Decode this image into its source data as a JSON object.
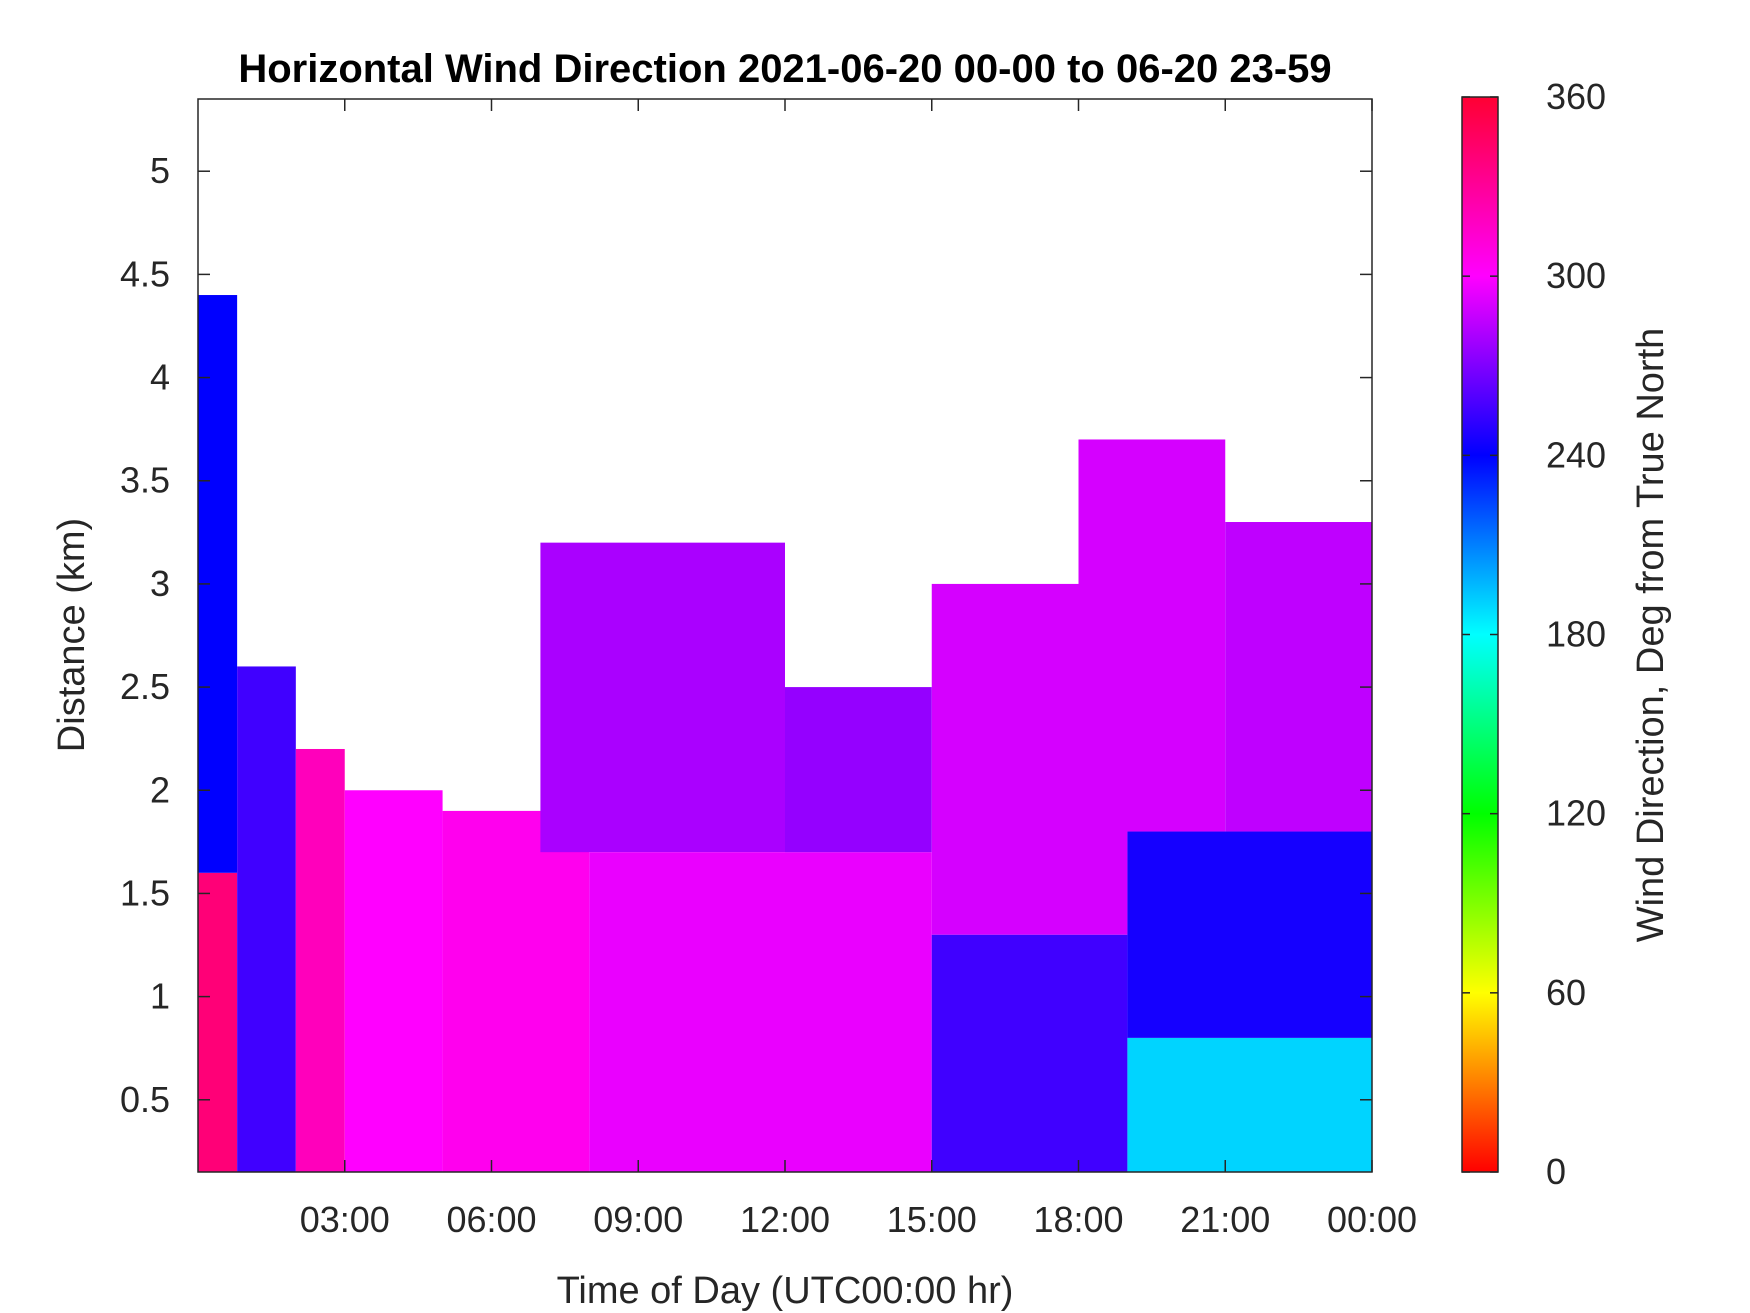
{
  "chart_data": {
    "type": "heatmap",
    "title": "Horizontal Wind Direction 2021-06-20 00-00 to 06-20 23-59",
    "xlabel": "Time of Day (UTC00:00 hr)",
    "ylabel": "Distance (km)",
    "xlim": [
      0,
      24
    ],
    "ylim": [
      0.15,
      5.35
    ],
    "x_ticks": [
      {
        "value": 3,
        "label": "03:00"
      },
      {
        "value": 6,
        "label": "06:00"
      },
      {
        "value": 9,
        "label": "09:00"
      },
      {
        "value": 12,
        "label": "12:00"
      },
      {
        "value": 15,
        "label": "15:00"
      },
      {
        "value": 18,
        "label": "18:00"
      },
      {
        "value": 21,
        "label": "21:00"
      },
      {
        "value": 24,
        "label": "00:00"
      }
    ],
    "y_ticks": [
      {
        "value": 0.5,
        "label": "0.5"
      },
      {
        "value": 1,
        "label": "1"
      },
      {
        "value": 1.5,
        "label": "1.5"
      },
      {
        "value": 2,
        "label": "2"
      },
      {
        "value": 2.5,
        "label": "2.5"
      },
      {
        "value": 3,
        "label": "3"
      },
      {
        "value": 3.5,
        "label": "3.5"
      },
      {
        "value": 4,
        "label": "4"
      },
      {
        "value": 4.5,
        "label": "4.5"
      },
      {
        "value": 5,
        "label": "5"
      }
    ],
    "colorbar": {
      "label": "Wind Direction, Deg from True North",
      "range": [
        0,
        360
      ],
      "ticks": [
        {
          "value": 0,
          "label": "0"
        },
        {
          "value": 60,
          "label": "60"
        },
        {
          "value": 120,
          "label": "120"
        },
        {
          "value": 180,
          "label": "180"
        },
        {
          "value": 240,
          "label": "240"
        },
        {
          "value": 300,
          "label": "300"
        },
        {
          "value": 360,
          "label": "360"
        }
      ],
      "colormap": [
        "#ff0000",
        "#ffff00",
        "#00ff00",
        "#00ffff",
        "#0000ff",
        "#ff00ff",
        "#ff0033"
      ]
    },
    "data_grid": {
      "x_start": 0,
      "x_step": 0.5,
      "y_start": 0.15,
      "y_step": 0.1,
      "regions": [
        {
          "x_range": [
            0,
            0.8
          ],
          "y_range": [
            0.15,
            1.6
          ],
          "value": 340
        },
        {
          "x_range": [
            0,
            0.8
          ],
          "y_range": [
            1.6,
            4.4
          ],
          "value": 240
        },
        {
          "x_range": [
            0.8,
            2.0
          ],
          "y_range": [
            0.15,
            2.6
          ],
          "value": 255
        },
        {
          "x_range": [
            2.0,
            3.0
          ],
          "y_range": [
            0.15,
            2.2
          ],
          "value": 320
        },
        {
          "x_range": [
            3.0,
            5.0
          ],
          "y_range": [
            0.15,
            2.0
          ],
          "value": 300
        },
        {
          "x_range": [
            5.0,
            8.0
          ],
          "y_range": [
            0.15,
            1.9
          ],
          "value": 305
        },
        {
          "x_range": [
            7.0,
            12.0
          ],
          "y_range": [
            1.7,
            3.2
          ],
          "value": 280
        },
        {
          "x_range": [
            8.0,
            15.0
          ],
          "y_range": [
            0.15,
            1.7
          ],
          "value": 295
        },
        {
          "x_range": [
            12.0,
            15.0
          ],
          "y_range": [
            1.7,
            2.5
          ],
          "value": 275
        },
        {
          "x_range": [
            15.0,
            19.0
          ],
          "y_range": [
            0.15,
            1.3
          ],
          "value": 255
        },
        {
          "x_range": [
            15.0,
            19.0
          ],
          "y_range": [
            1.3,
            3.0
          ],
          "value": 290
        },
        {
          "x_range": [
            19.0,
            24.0
          ],
          "y_range": [
            0.15,
            0.8
          ],
          "value": 190
        },
        {
          "x_range": [
            19.0,
            24.0
          ],
          "y_range": [
            0.8,
            1.8
          ],
          "value": 245
        },
        {
          "x_range": [
            18.0,
            21.0
          ],
          "y_range": [
            1.8,
            3.7
          ],
          "value": 290
        },
        {
          "x_range": [
            21.0,
            24.0
          ],
          "y_range": [
            1.8,
            3.3
          ],
          "value": 285
        }
      ]
    }
  }
}
